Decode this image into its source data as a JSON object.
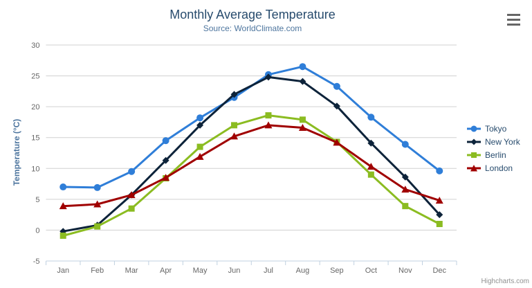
{
  "chart": {
    "title": "Monthly Average Temperature",
    "subtitle": "Source: WorldClimate.com",
    "y_axis_title": "Temperature (°C)",
    "credits": "Highcharts.com"
  },
  "colors": {
    "title": "#274b6d",
    "subtitle": "#4d759e",
    "axis_label": "#666666",
    "axis_line": "#c0d0e0",
    "gridline": "#d0d0d0",
    "legend_text": "#274b6d",
    "credits": "#909090",
    "burger_icon": "#666666",
    "background": "#ffffff"
  },
  "chart_data": {
    "type": "line",
    "title": "Monthly Average Temperature",
    "subtitle": "Source: WorldClimate.com",
    "xlabel": "",
    "ylabel": "Temperature (°C)",
    "ylim": [
      -5,
      30
    ],
    "grid": true,
    "legend_position": "middle-right",
    "categories": [
      "Jan",
      "Feb",
      "Mar",
      "Apr",
      "May",
      "Jun",
      "Jul",
      "Aug",
      "Sep",
      "Oct",
      "Nov",
      "Dec"
    ],
    "y_ticks": [
      30,
      25,
      20,
      15,
      10,
      5,
      0,
      -5
    ],
    "series": [
      {
        "name": "Tokyo",
        "color": "#2f7ed8",
        "marker": "circle",
        "values": [
          7.0,
          6.9,
          9.5,
          14.5,
          18.2,
          21.5,
          25.2,
          26.5,
          23.3,
          18.3,
          13.9,
          9.6
        ]
      },
      {
        "name": "New York",
        "color": "#0d233a",
        "marker": "diamond",
        "values": [
          -0.2,
          0.8,
          5.7,
          11.3,
          17.0,
          22.0,
          24.8,
          24.1,
          20.1,
          14.1,
          8.6,
          2.5
        ]
      },
      {
        "name": "Berlin",
        "color": "#8bbc21",
        "marker": "square",
        "values": [
          -0.9,
          0.6,
          3.5,
          8.4,
          13.5,
          17.0,
          18.6,
          17.9,
          14.3,
          9.0,
          3.9,
          1.0
        ]
      },
      {
        "name": "London",
        "color": "#a00000",
        "marker": "triangle",
        "values": [
          3.9,
          4.2,
          5.7,
          8.5,
          11.9,
          15.2,
          17.0,
          16.6,
          14.2,
          10.3,
          6.6,
          4.8
        ]
      }
    ]
  }
}
